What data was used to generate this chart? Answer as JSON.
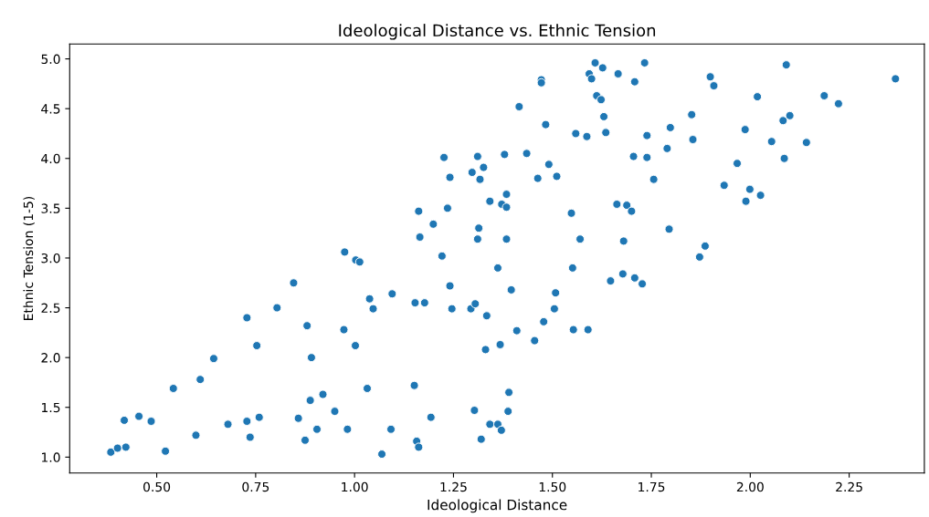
{
  "chart_data": {
    "type": "scatter",
    "title": "Ideological Distance vs. Ethnic Tension",
    "xlabel": "Ideological Distance",
    "ylabel": "Ethnic Tension (1-5)",
    "marker": "circle",
    "grid": false,
    "xlim": [
      0.28,
      2.44
    ],
    "ylim": [
      0.84,
      5.15
    ],
    "xticks": [
      {
        "value": 0.5,
        "label": "0.50"
      },
      {
        "value": 0.75,
        "label": "0.75"
      },
      {
        "value": 1.0,
        "label": "1.00"
      },
      {
        "value": 1.25,
        "label": "1.25"
      },
      {
        "value": 1.5,
        "label": "1.50"
      },
      {
        "value": 1.75,
        "label": "1.75"
      },
      {
        "value": 2.0,
        "label": "2.00"
      },
      {
        "value": 2.25,
        "label": "2.25"
      }
    ],
    "yticks": [
      {
        "value": 1.0,
        "label": "1.0"
      },
      {
        "value": 1.5,
        "label": "1.5"
      },
      {
        "value": 2.0,
        "label": "2.0"
      },
      {
        "value": 2.5,
        "label": "2.5"
      },
      {
        "value": 3.0,
        "label": "3.0"
      },
      {
        "value": 3.5,
        "label": "3.5"
      },
      {
        "value": 4.0,
        "label": "4.0"
      },
      {
        "value": 4.5,
        "label": "4.5"
      },
      {
        "value": 5.0,
        "label": "5.0"
      }
    ],
    "series": [
      {
        "color": "#1f77b4",
        "x": [
          0.384,
          0.401,
          0.422,
          0.418,
          0.455,
          0.486,
          0.522,
          0.542,
          0.599,
          0.61,
          0.644,
          0.68,
          0.728,
          0.736,
          0.759,
          0.753,
          0.728,
          0.804,
          0.846,
          0.88,
          0.891,
          0.888,
          0.92,
          0.858,
          0.875,
          0.905,
          0.95,
          0.982,
          0.973,
          1.002,
          0.975,
          1.003,
          1.013,
          1.038,
          1.047,
          1.032,
          1.095,
          1.092,
          1.069,
          1.151,
          1.157,
          1.162,
          1.193,
          1.153,
          1.177,
          1.165,
          1.162,
          1.199,
          1.221,
          1.226,
          1.241,
          1.235,
          1.241,
          1.246,
          1.294,
          1.305,
          1.334,
          1.311,
          1.326,
          1.297,
          1.317,
          1.314,
          1.311,
          1.303,
          1.32,
          1.331,
          1.342,
          1.362,
          1.368,
          1.342,
          1.362,
          1.371,
          1.379,
          1.372,
          1.384,
          1.384,
          1.384,
          1.396,
          1.388,
          1.39,
          1.41,
          1.416,
          1.435,
          1.455,
          1.463,
          1.472,
          1.472,
          1.478,
          1.483,
          1.491,
          1.505,
          1.508,
          1.511,
          1.548,
          1.551,
          1.553,
          1.559,
          1.57,
          1.587,
          1.59,
          1.593,
          1.599,
          1.608,
          1.612,
          1.623,
          1.627,
          1.63,
          1.635,
          1.647,
          1.663,
          1.666,
          1.678,
          1.68,
          1.688,
          1.7,
          1.705,
          1.708,
          1.708,
          1.727,
          1.733,
          1.739,
          1.739,
          1.756,
          1.79,
          1.798,
          1.795,
          1.852,
          1.855,
          1.872,
          1.886,
          1.899,
          1.908,
          1.934,
          1.967,
          1.987,
          1.989,
          1.999,
          2.018,
          2.026,
          2.054,
          2.083,
          2.1,
          2.086,
          2.091,
          2.142,
          2.187,
          2.223,
          2.367
        ],
        "values": [
          1.05,
          1.09,
          1.1,
          1.37,
          1.41,
          1.36,
          1.06,
          1.69,
          1.22,
          1.78,
          1.99,
          1.33,
          1.36,
          1.2,
          1.4,
          2.12,
          2.4,
          2.5,
          2.75,
          2.32,
          2.0,
          1.57,
          1.63,
          1.39,
          1.17,
          1.28,
          1.46,
          1.28,
          2.28,
          2.12,
          3.06,
          2.98,
          2.96,
          2.59,
          2.49,
          1.69,
          2.64,
          1.28,
          1.03,
          1.72,
          1.16,
          1.1,
          1.4,
          2.55,
          2.55,
          3.21,
          3.47,
          3.34,
          3.02,
          4.01,
          3.81,
          3.5,
          2.72,
          2.49,
          2.49,
          2.54,
          2.42,
          4.02,
          3.91,
          3.86,
          3.79,
          3.3,
          3.19,
          1.47,
          1.18,
          2.08,
          3.57,
          2.9,
          2.13,
          1.33,
          1.33,
          1.27,
          4.04,
          3.54,
          3.51,
          3.64,
          3.19,
          2.68,
          1.46,
          1.65,
          2.27,
          4.52,
          4.05,
          2.17,
          3.8,
          4.79,
          4.76,
          2.36,
          4.34,
          3.94,
          2.49,
          2.65,
          3.82,
          3.45,
          2.9,
          2.28,
          4.25,
          3.19,
          4.22,
          2.28,
          4.85,
          4.8,
          4.96,
          4.63,
          4.59,
          4.91,
          4.42,
          4.26,
          2.77,
          3.54,
          4.85,
          2.84,
          3.17,
          3.53,
          3.47,
          4.02,
          4.77,
          2.8,
          2.74,
          4.96,
          4.23,
          4.01,
          3.79,
          4.1,
          4.31,
          3.29,
          4.44,
          4.19,
          3.01,
          3.12,
          4.82,
          4.73,
          3.73,
          3.95,
          4.29,
          3.57,
          3.69,
          4.62,
          3.63,
          4.17,
          4.38,
          4.43,
          4.0,
          4.94,
          4.16,
          4.63,
          4.55,
          4.8
        ]
      }
    ]
  }
}
